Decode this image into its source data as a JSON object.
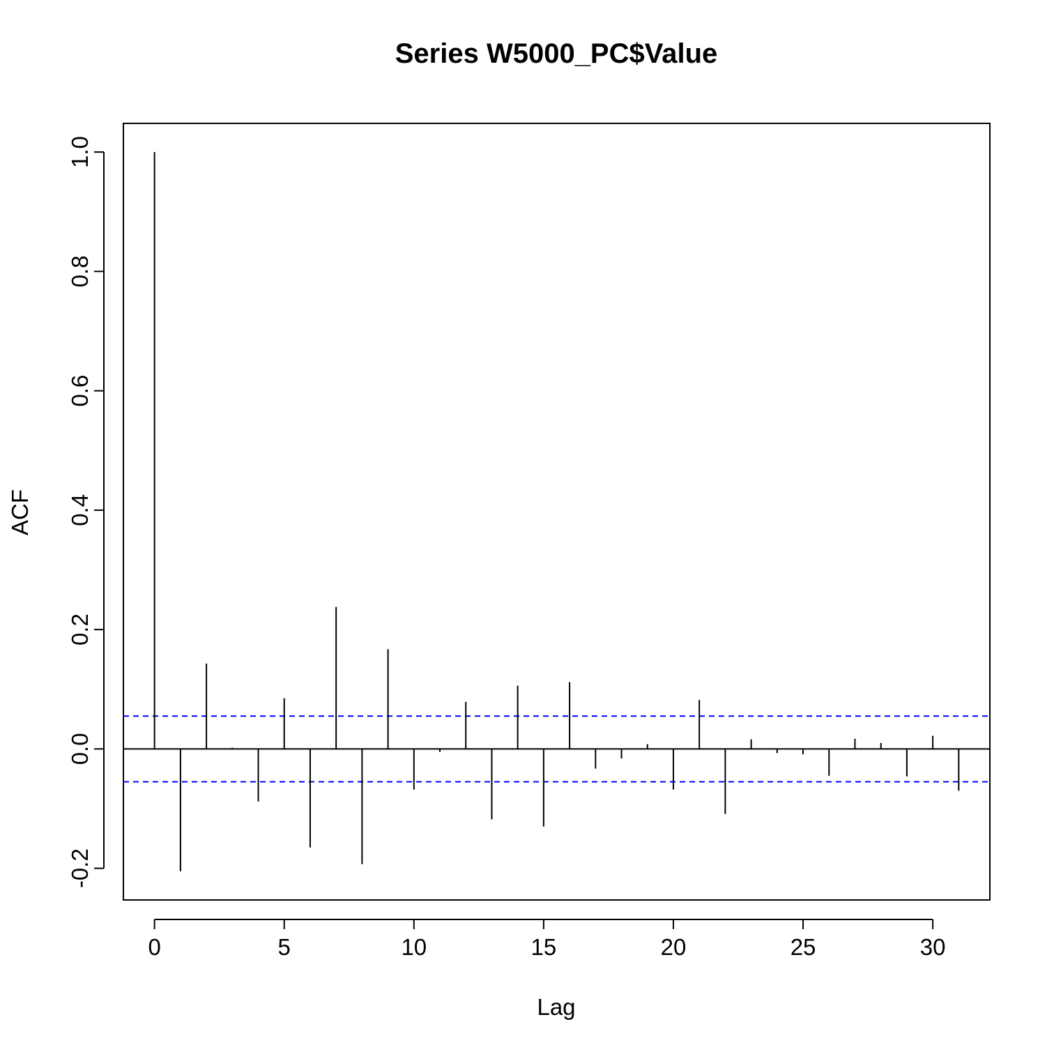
{
  "chart_data": {
    "type": "bar",
    "title": "Series  W5000_PC$Value",
    "xlabel": "Lag",
    "ylabel": "ACF",
    "xlim": [
      -1.2,
      32.2
    ],
    "ylim": [
      -0.253,
      1.048
    ],
    "xticks": [
      0,
      5,
      10,
      15,
      20,
      25,
      30
    ],
    "yticks": [
      -0.2,
      0.0,
      0.2,
      0.4,
      0.6,
      0.8,
      1.0
    ],
    "xtick_labels": [
      "0",
      "5",
      "10",
      "15",
      "20",
      "25",
      "30"
    ],
    "ytick_labels": [
      "-0.2",
      "0.0",
      "0.2",
      "0.4",
      "0.6",
      "0.8",
      "1.0"
    ],
    "lags": [
      0,
      1,
      2,
      3,
      4,
      5,
      6,
      7,
      8,
      9,
      10,
      11,
      12,
      13,
      14,
      15,
      16,
      17,
      18,
      19,
      20,
      21,
      22,
      23,
      24,
      25,
      26,
      27,
      28,
      29,
      30,
      31
    ],
    "values": [
      1.0,
      -0.205,
      0.143,
      0.002,
      -0.088,
      0.085,
      -0.165,
      0.238,
      -0.193,
      0.167,
      -0.068,
      -0.005,
      0.079,
      -0.118,
      0.106,
      -0.13,
      0.112,
      -0.033,
      -0.016,
      0.008,
      -0.068,
      0.082,
      -0.109,
      0.016,
      -0.007,
      -0.009,
      -0.045,
      0.017,
      0.01,
      -0.046,
      0.022,
      -0.07
    ],
    "confidence_bounds": [
      0.055,
      -0.055
    ],
    "confidence_color": "#0000ff",
    "bar_color": "#000000",
    "grid": false
  }
}
